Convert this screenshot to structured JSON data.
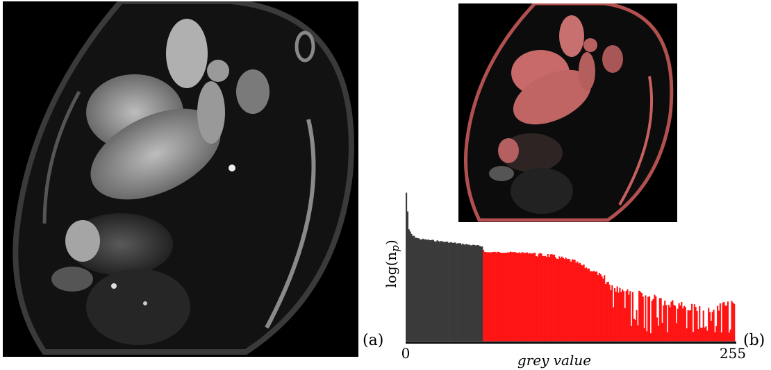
{
  "labels": {
    "a": "(a)",
    "b": "(b)"
  },
  "histogram": {
    "xlabel": "grey value",
    "ylabel_prefix": "log(n",
    "ylabel_sub": "p",
    "ylabel_suffix": ")",
    "xmin_label": "0",
    "xmax_label": "255",
    "threshold": 60,
    "colors": {
      "below": "#3a3a3a",
      "above": "#ff1414"
    }
  },
  "chart_data": {
    "type": "bar",
    "xlim": [
      0,
      255
    ],
    "threshold": 60,
    "envelope": [
      {
        "x": 0,
        "y": 1.0
      },
      {
        "x": 2,
        "y": 0.75
      },
      {
        "x": 5,
        "y": 0.71
      },
      {
        "x": 10,
        "y": 0.69
      },
      {
        "x": 30,
        "y": 0.67
      },
      {
        "x": 59,
        "y": 0.64
      },
      {
        "x": 61,
        "y": 0.6
      },
      {
        "x": 80,
        "y": 0.6
      },
      {
        "x": 110,
        "y": 0.59
      },
      {
        "x": 130,
        "y": 0.55
      },
      {
        "x": 150,
        "y": 0.46
      },
      {
        "x": 175,
        "y": 0.37
      },
      {
        "x": 200,
        "y": 0.3
      },
      {
        "x": 230,
        "y": 0.24
      },
      {
        "x": 255,
        "y": 0.28
      }
    ]
  }
}
